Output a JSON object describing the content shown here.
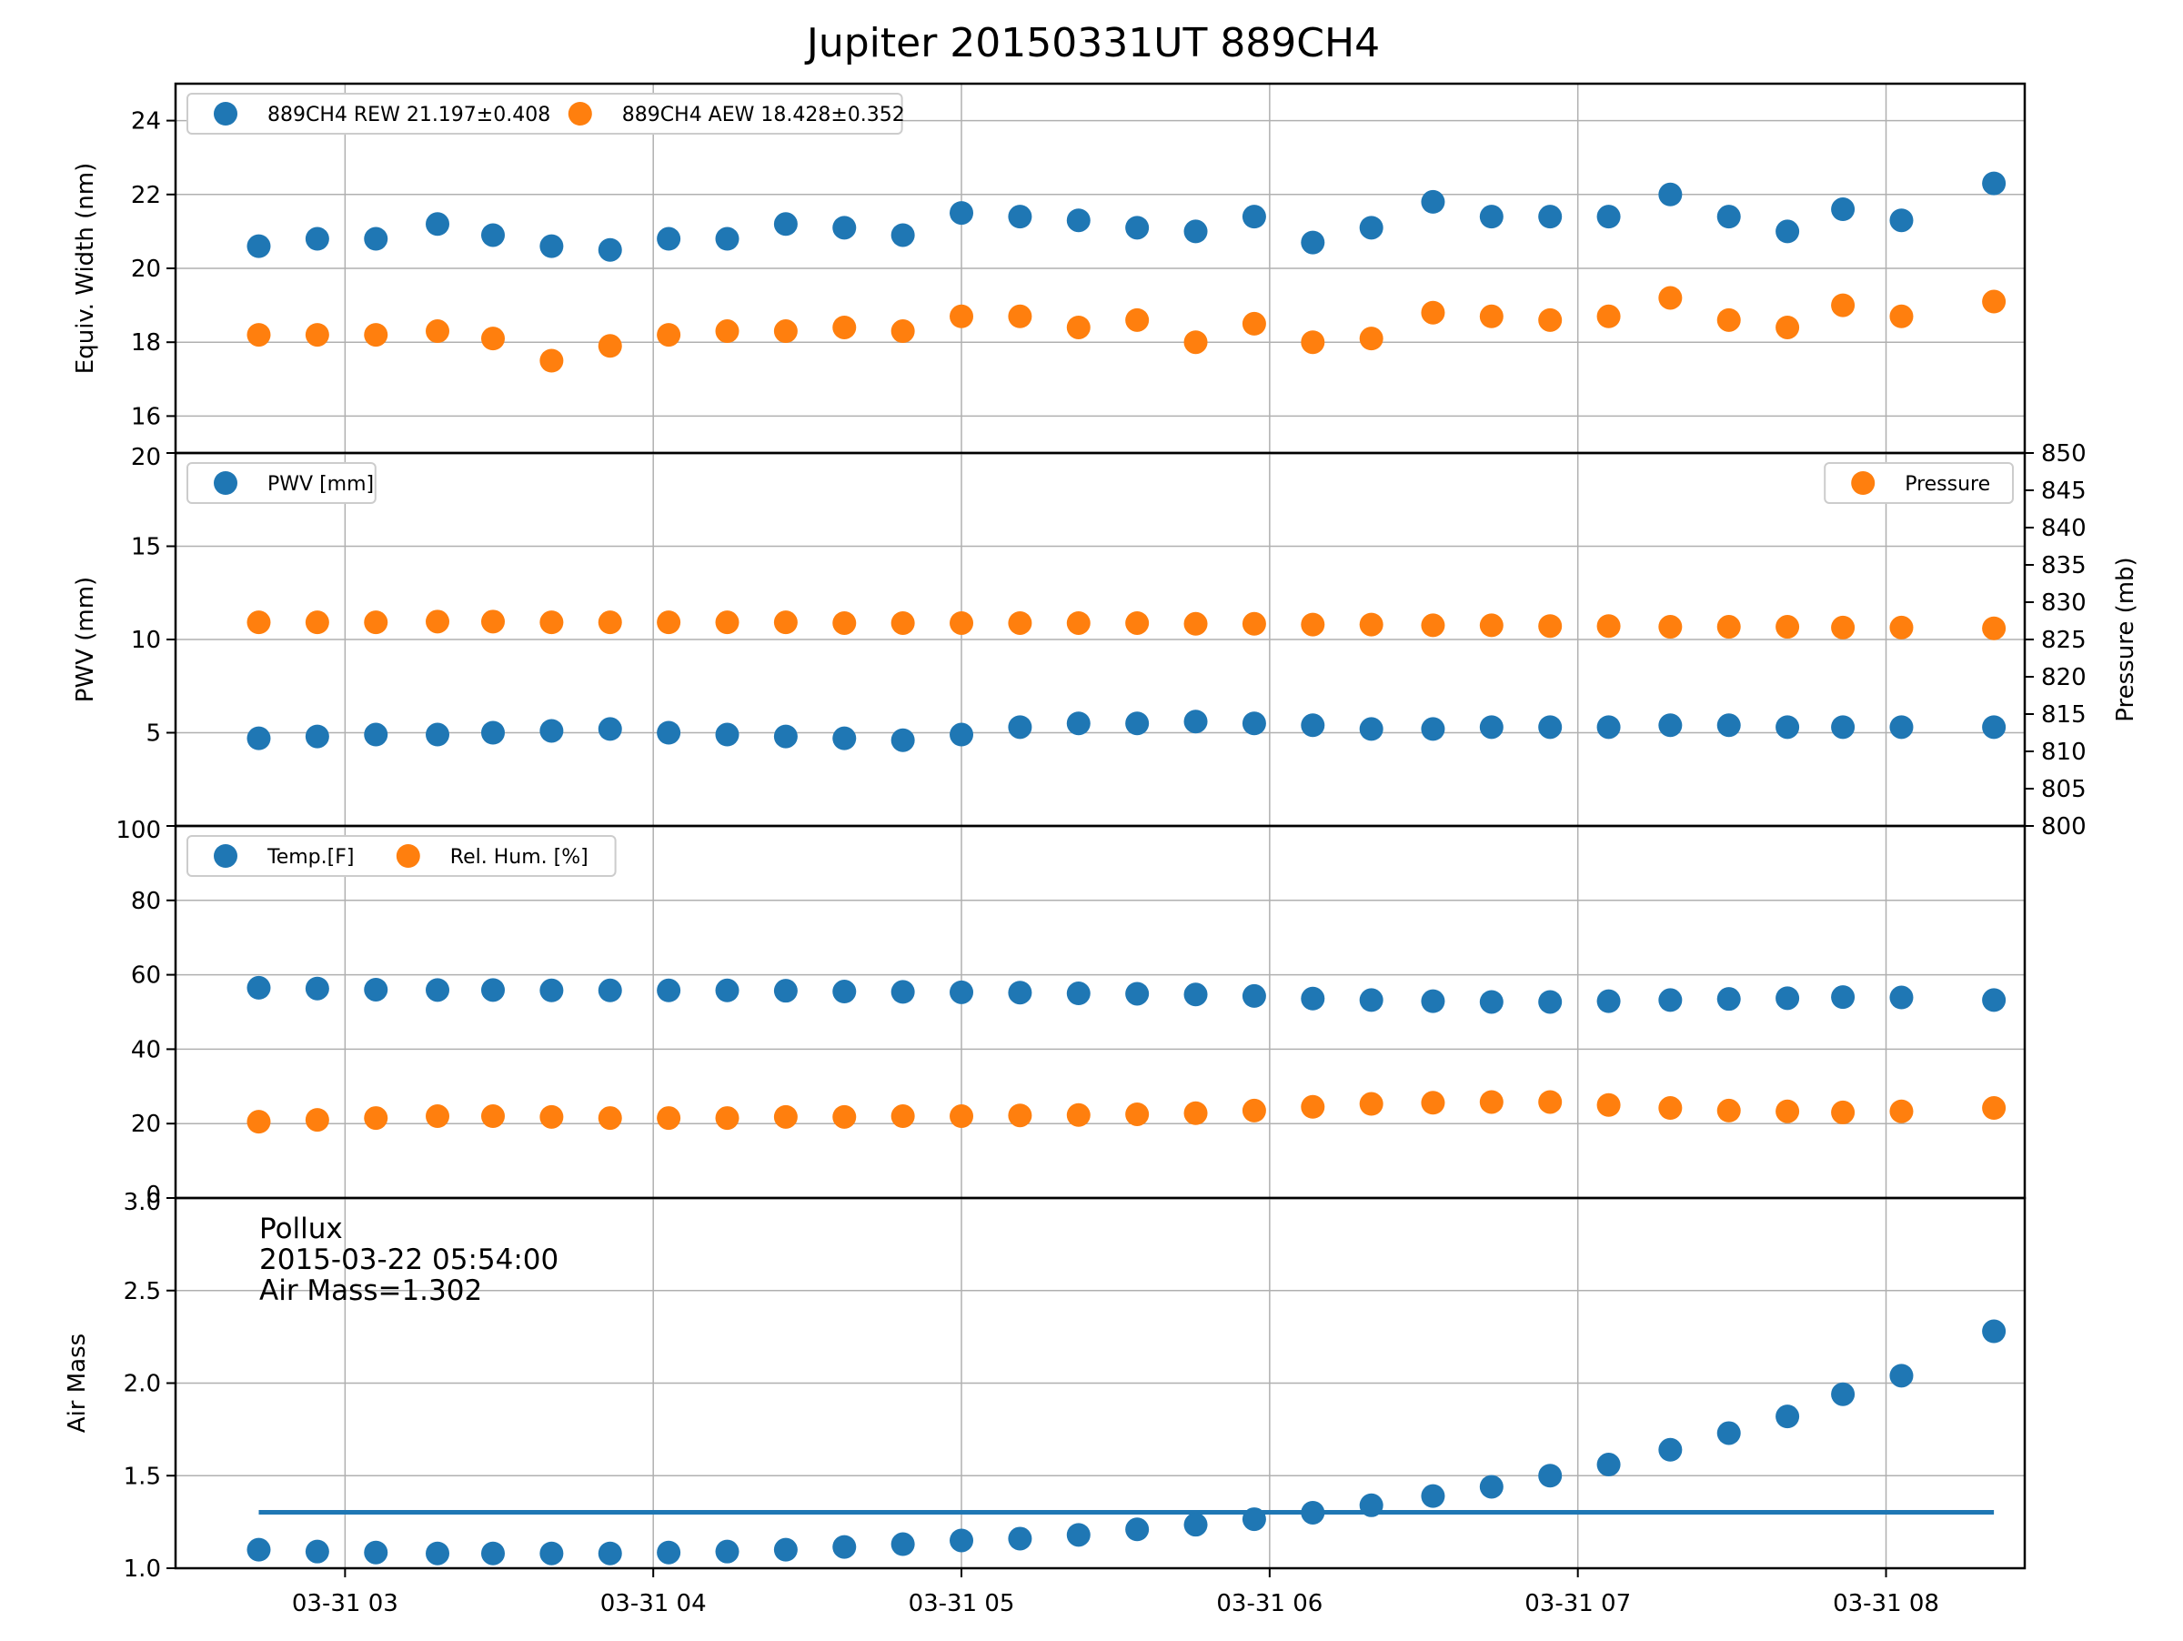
{
  "title": "Jupiter 20150331UT 889CH4",
  "colors": {
    "blue": "#1f77b4",
    "orange": "#ff7f0e",
    "grid": "#b0b0b0"
  },
  "x_axis": {
    "type": "time",
    "range_hours": [
      2.45,
      8.45
    ],
    "ticks": [
      {
        "label": "03-31 03",
        "hour": 3
      },
      {
        "label": "03-31 04",
        "hour": 4
      },
      {
        "label": "03-31 05",
        "hour": 5
      },
      {
        "label": "03-31 06",
        "hour": 6
      },
      {
        "label": "03-31 07",
        "hour": 7
      },
      {
        "label": "03-31 08",
        "hour": 8
      }
    ]
  },
  "chart_data": [
    {
      "type": "scatter",
      "ylabel": "Equiv. Width (nm)",
      "ylim": [
        15,
        25
      ],
      "yticks": [
        {
          "v": 16,
          "label": "16"
        },
        {
          "v": 18,
          "label": "18"
        },
        {
          "v": 20,
          "label": "20"
        },
        {
          "v": 22,
          "label": "22"
        },
        {
          "v": 24,
          "label": "24"
        }
      ],
      "grid": true,
      "legend": {
        "placement": "upper-left",
        "entries": [
          "889CH4 REW 21.197±0.408",
          "889CH4 AEW 18.428±0.352"
        ]
      },
      "x": [
        2.72,
        2.91,
        3.1,
        3.3,
        3.48,
        3.67,
        3.86,
        4.05,
        4.24,
        4.43,
        4.62,
        4.81,
        5.0,
        5.19,
        5.38,
        5.57,
        5.76,
        5.95,
        6.14,
        6.33,
        6.53,
        6.72,
        6.91,
        7.1,
        7.3,
        7.49,
        7.68,
        7.86,
        8.05,
        8.35
      ],
      "series": [
        {
          "name": "889CH4 REW 21.197±0.408",
          "color": "#1f77b4",
          "axis": "left",
          "values": [
            20.6,
            20.8,
            20.8,
            21.2,
            20.9,
            20.6,
            20.5,
            20.8,
            20.8,
            21.2,
            21.1,
            20.9,
            21.5,
            21.4,
            21.3,
            21.1,
            21.0,
            21.4,
            20.7,
            21.1,
            21.8,
            21.4,
            21.4,
            21.4,
            22.0,
            21.4,
            21.0,
            21.6,
            21.3,
            22.3
          ]
        },
        {
          "name": "889CH4 AEW 18.428±0.352",
          "color": "#ff7f0e",
          "axis": "left",
          "values": [
            18.2,
            18.2,
            18.2,
            18.3,
            18.1,
            17.5,
            17.9,
            18.2,
            18.3,
            18.3,
            18.4,
            18.3,
            18.7,
            18.7,
            18.4,
            18.6,
            18.0,
            18.5,
            18.0,
            18.1,
            18.8,
            18.7,
            18.6,
            18.7,
            19.2,
            18.6,
            18.4,
            19.0,
            18.7,
            19.1
          ]
        }
      ]
    },
    {
      "type": "scatter",
      "ylabel": "PWV (mm)",
      "ylabel_right": "Pressure (mb)",
      "ylim": [
        0,
        20
      ],
      "ylim_right": [
        800,
        850
      ],
      "yticks": [
        {
          "v": 5,
          "label": "5"
        },
        {
          "v": 10,
          "label": "10"
        },
        {
          "v": 15,
          "label": "15"
        },
        {
          "v": 20,
          "label": "20"
        }
      ],
      "yticks_right": [
        {
          "v": 800,
          "label": "800"
        },
        {
          "v": 805,
          "label": "805"
        },
        {
          "v": 810,
          "label": "810"
        },
        {
          "v": 815,
          "label": "815"
        },
        {
          "v": 820,
          "label": "820"
        },
        {
          "v": 825,
          "label": "825"
        },
        {
          "v": 830,
          "label": "830"
        },
        {
          "v": 835,
          "label": "835"
        },
        {
          "v": 840,
          "label": "840"
        },
        {
          "v": 845,
          "label": "845"
        },
        {
          "v": 850,
          "label": "850"
        }
      ],
      "grid": true,
      "legend_left": {
        "placement": "upper-left",
        "entries": [
          "PWV [mm]"
        ]
      },
      "legend_right": {
        "placement": "upper-right",
        "entries": [
          "Pressure"
        ]
      },
      "x": [
        2.72,
        2.91,
        3.1,
        3.3,
        3.48,
        3.67,
        3.86,
        4.05,
        4.24,
        4.43,
        4.62,
        4.81,
        5.0,
        5.19,
        5.38,
        5.57,
        5.76,
        5.95,
        6.14,
        6.33,
        6.53,
        6.72,
        6.91,
        7.1,
        7.3,
        7.49,
        7.68,
        7.86,
        8.05,
        8.35
      ],
      "series": [
        {
          "name": "PWV [mm]",
          "color": "#1f77b4",
          "axis": "left",
          "values": [
            4.7,
            4.8,
            4.9,
            4.9,
            5.0,
            5.1,
            5.2,
            5.0,
            4.9,
            4.8,
            4.7,
            4.6,
            4.9,
            5.3,
            5.5,
            5.5,
            5.6,
            5.5,
            5.4,
            5.2,
            5.2,
            5.3,
            5.3,
            5.3,
            5.4,
            5.4,
            5.3,
            5.3,
            5.3,
            5.3
          ]
        },
        {
          "name": "Pressure",
          "color": "#ff7f0e",
          "axis": "right",
          "values": [
            827.3,
            827.3,
            827.3,
            827.4,
            827.4,
            827.3,
            827.3,
            827.3,
            827.3,
            827.3,
            827.2,
            827.2,
            827.2,
            827.2,
            827.2,
            827.2,
            827.1,
            827.1,
            827.0,
            827.0,
            826.9,
            826.9,
            826.8,
            826.8,
            826.7,
            826.7,
            826.7,
            826.6,
            826.6,
            826.5
          ]
        }
      ]
    },
    {
      "type": "scatter",
      "ylabel": "",
      "ylim": [
        0,
        100
      ],
      "yticks": [
        {
          "v": 0,
          "label": "0"
        },
        {
          "v": 20,
          "label": "20"
        },
        {
          "v": 40,
          "label": "40"
        },
        {
          "v": 60,
          "label": "60"
        },
        {
          "v": 80,
          "label": "80"
        },
        {
          "v": 100,
          "label": "100"
        }
      ],
      "grid": true,
      "legend": {
        "placement": "upper-left",
        "entries": [
          "Temp.[F]",
          "Rel. Hum. [%]"
        ]
      },
      "x": [
        2.72,
        2.91,
        3.1,
        3.3,
        3.48,
        3.67,
        3.86,
        4.05,
        4.24,
        4.43,
        4.62,
        4.81,
        5.0,
        5.19,
        5.38,
        5.57,
        5.76,
        5.95,
        6.14,
        6.33,
        6.53,
        6.72,
        6.91,
        7.1,
        7.3,
        7.49,
        7.68,
        7.86,
        8.05,
        8.35
      ],
      "series": [
        {
          "name": "Temp.[F]",
          "color": "#1f77b4",
          "axis": "left",
          "values": [
            56.5,
            56.3,
            56.0,
            55.9,
            55.9,
            55.8,
            55.8,
            55.8,
            55.8,
            55.7,
            55.5,
            55.4,
            55.3,
            55.2,
            55.0,
            54.9,
            54.7,
            54.3,
            53.6,
            53.2,
            52.9,
            52.7,
            52.7,
            52.9,
            53.2,
            53.5,
            53.7,
            54.0,
            53.9,
            53.2
          ]
        },
        {
          "name": "Rel. Hum. [%]",
          "color": "#ff7f0e",
          "axis": "left",
          "values": [
            20.5,
            21.0,
            21.5,
            22.0,
            22.0,
            21.8,
            21.5,
            21.5,
            21.5,
            21.8,
            21.8,
            22.0,
            22.0,
            22.2,
            22.3,
            22.5,
            22.8,
            23.5,
            24.5,
            25.3,
            25.6,
            25.8,
            25.8,
            25.0,
            24.2,
            23.5,
            23.3,
            23.0,
            23.3,
            24.2
          ]
        }
      ]
    },
    {
      "type": "scatter",
      "ylabel": "Air Mass",
      "ylim": [
        1.0,
        3.0
      ],
      "yticks": [
        {
          "v": 1.0,
          "label": "1.0"
        },
        {
          "v": 1.5,
          "label": "1.5"
        },
        {
          "v": 2.0,
          "label": "2.0"
        },
        {
          "v": 2.5,
          "label": "2.5"
        },
        {
          "v": 3.0,
          "label": "3.0"
        }
      ],
      "grid": true,
      "annotation": [
        "Pollux",
        "2015-03-22 05:54:00",
        "Air Mass=1.302"
      ],
      "hline": {
        "y": 1.302,
        "x_range": [
          2.72,
          8.35
        ],
        "color": "#1f77b4"
      },
      "x": [
        2.72,
        2.91,
        3.1,
        3.3,
        3.48,
        3.67,
        3.86,
        4.05,
        4.24,
        4.43,
        4.62,
        4.81,
        5.0,
        5.19,
        5.38,
        5.57,
        5.76,
        5.95,
        6.14,
        6.33,
        6.53,
        6.72,
        6.91,
        7.1,
        7.3,
        7.49,
        7.68,
        7.86,
        8.05,
        8.35
      ],
      "series": [
        {
          "color": "#1f77b4",
          "axis": "left",
          "values": [
            1.1,
            1.09,
            1.085,
            1.08,
            1.08,
            1.08,
            1.08,
            1.085,
            1.09,
            1.1,
            1.115,
            1.13,
            1.15,
            1.16,
            1.18,
            1.21,
            1.235,
            1.265,
            1.3,
            1.34,
            1.39,
            1.44,
            1.5,
            1.56,
            1.64,
            1.73,
            1.82,
            1.94,
            2.04,
            2.28
          ]
        }
      ]
    }
  ]
}
